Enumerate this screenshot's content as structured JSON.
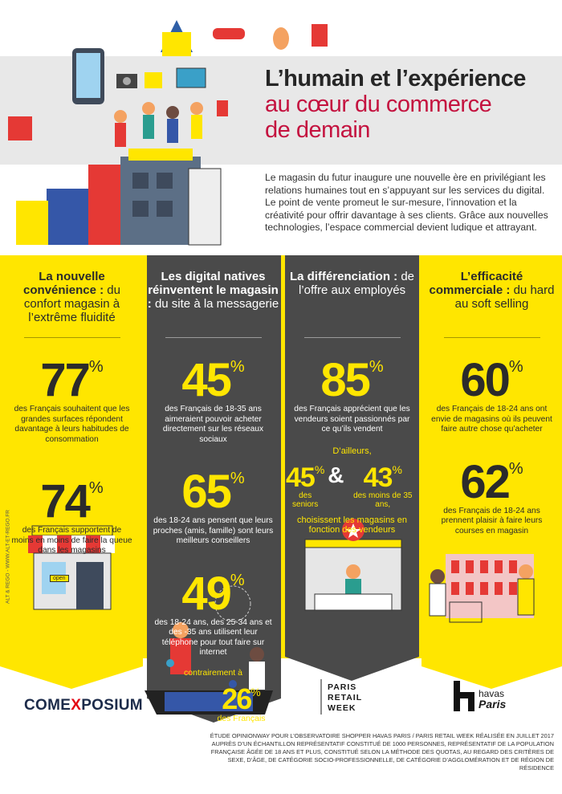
{
  "header": {
    "title_line1": "L’humain et l’expérience",
    "title_line2": "au cœur du commerce",
    "title_line3": "de demain",
    "intro": "Le magasin du futur inaugure une nouvelle ère en privilégiant les relations humaines tout en s’appuyant sur les services du digital. Le point de vente promeut le sur-mesure, l’innovation et la créativité pour offrir davantage à ses clients. Grâce aux nouvelles technologies, l’espace commercial devient ludique et attrayant."
  },
  "columns": [
    {
      "heading_bold": "La nouvelle convénience :",
      "heading_rest": "du confort magasin à l’extrême fluidité",
      "stats": [
        {
          "value": 77,
          "unit": "%",
          "text": "des Français souhaitent que les grandes surfaces répondent davantage à leurs habitudes de consommation"
        },
        {
          "value": 74,
          "unit": "%",
          "text": "des Français supportent de moins en moins de faire la queue dans les magasins"
        }
      ],
      "sign": "open"
    },
    {
      "heading_bold": "Les digital natives réinventent le magasin :",
      "heading_rest": "du site à la messagerie",
      "stats": [
        {
          "value": 45,
          "unit": "%",
          "text": "des Français de 18-35 ans aimeraient pouvoir acheter directement sur les réseaux sociaux"
        },
        {
          "value": 65,
          "unit": "%",
          "text": "des 18-24 ans pensent que leurs proches (amis, famille) sont leurs meilleurs conseillers"
        },
        {
          "value": 49,
          "unit": "%",
          "text": "des 18-24 ans, des 25-34 ans et des -35 ans utilisent leur téléphone pour tout faire sur internet"
        }
      ],
      "contrast": {
        "prefix": "contrairement à",
        "value": 26,
        "unit": "%",
        "text": "des Français"
      }
    },
    {
      "heading_bold": "La différenciation :",
      "heading_rest": "de l’offre aux employés",
      "stats": [
        {
          "value": 85,
          "unit": "%",
          "text": "des Français apprécient que les vendeurs soient passionnés par ce qu’ils vendent"
        }
      ],
      "split": {
        "intro": "D’ailleurs,",
        "items": [
          {
            "value": 45,
            "unit": "%",
            "text": "des seniors"
          },
          {
            "value": 43,
            "unit": "%",
            "text": "des moins de 35 ans,"
          }
        ],
        "joiner": "&",
        "outro": "choisissent les magasins en fonction des vendeurs"
      }
    },
    {
      "heading_bold": "L’efficacité commerciale :",
      "heading_rest": "du hard au soft selling",
      "stats": [
        {
          "value": 60,
          "unit": "%",
          "text": "des Français de 18-24 ans ont envie de magasins où ils peuvent faire autre chose qu’acheter"
        },
        {
          "value": 62,
          "unit": "%",
          "text": "des Français de 18-24 ans prennent plaisir à faire leurs courses en magasin"
        }
      ]
    }
  ],
  "credit": "ALT & REGO - WWW.ALT-ET-REGO.FR",
  "logos": {
    "comexposium": [
      "COME",
      "X",
      "POSIUM"
    ],
    "paris_retail_week": [
      "PARIS",
      "RETAIL",
      "WEEK"
    ],
    "havas": [
      "havas",
      "Paris"
    ]
  },
  "footnote": "ÉTUDE OPINIONWAY POUR L’OBSERVATOIRE SHOPPER HAVAS PARIS / PARIS RETAIL WEEK RÉALISÉE EN JUILLET 2017 AUPRÈS D’UN ÉCHANTILLON REPRÉSENTATIF CONSTITUÉ DE 1000 PERSONNES, REPRÉSENTATIF DE LA POPULATION FRANÇAISE ÂGÉE DE 18 ANS ET PLUS, CONSTITUÉ SELON LA MÉTHODE DES QUOTAS, AU REGARD DES CRITÈRES DE SEXE, D’ÂGE, DE CATÉGORIE SOCIO-PROFESSIONNELLE, DE CATÉGORIE D’AGGLOMÉRATION ET DE RÉGION DE RÉSIDENCE"
}
